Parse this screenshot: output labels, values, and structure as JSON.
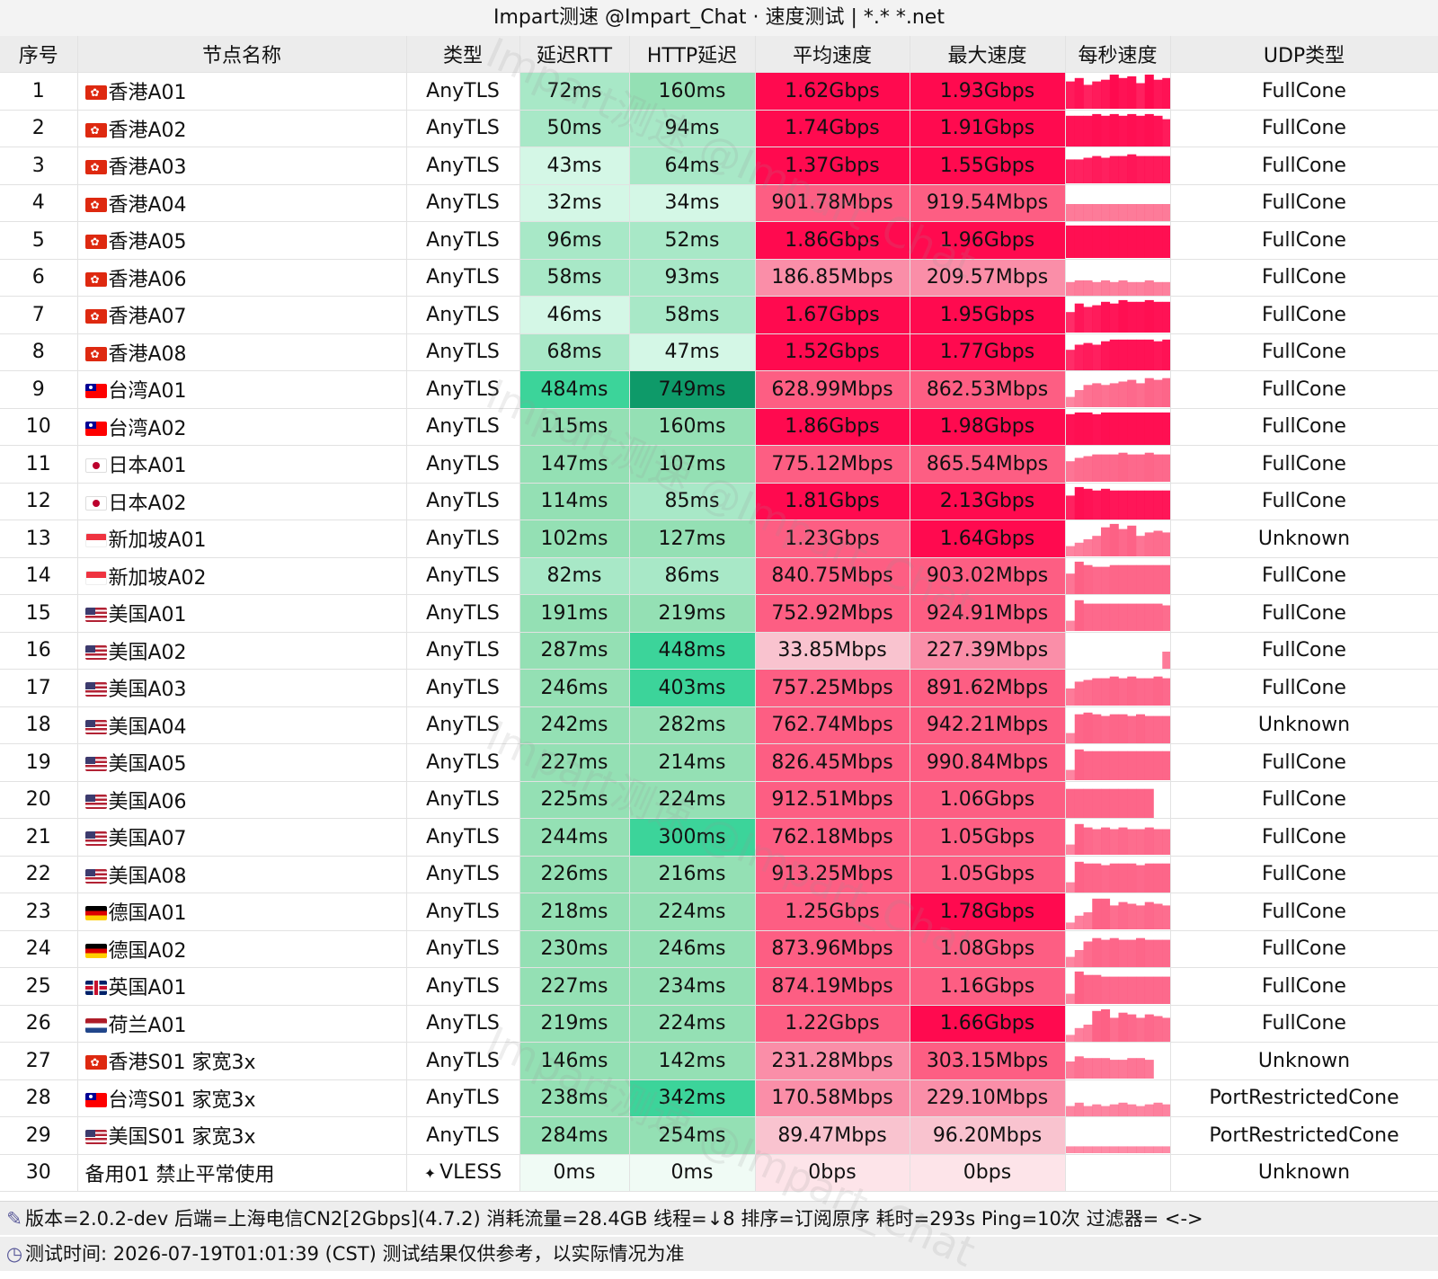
{
  "title": "Impart测速 @Impart_Chat · 速度测试 | *.* *.net",
  "columns": {
    "idx": "序号",
    "name": "节点名称",
    "type": "类型",
    "rtt": "延迟RTT",
    "http": "HTTP延迟",
    "avg": "平均速度",
    "max": "最大速度",
    "spark": "每秒速度",
    "udp": "UDP类型"
  },
  "rows": [
    {
      "idx": "1",
      "flag": "hk",
      "name": "香港A01",
      "type": "AnyTLS",
      "rtt": "72ms",
      "http": "160ms",
      "avg": "1.62Gbps",
      "max": "1.93Gbps",
      "udp": "FullCone",
      "spark": [
        0.8,
        0.9,
        0.7,
        0.8,
        0.85,
        1,
        0.9,
        0.95,
        0.75,
        1,
        0.85,
        0.9
      ]
    },
    {
      "idx": "2",
      "flag": "hk",
      "name": "香港A02",
      "type": "AnyTLS",
      "rtt": "50ms",
      "http": "94ms",
      "avg": "1.74Gbps",
      "max": "1.91Gbps",
      "udp": "FullCone",
      "spark": [
        0.9,
        0.9,
        0.9,
        0.95,
        0.9,
        0.95,
        0.9,
        0.95,
        0.9,
        0.95,
        0.9,
        0.8
      ]
    },
    {
      "idx": "3",
      "flag": "hk",
      "name": "香港A03",
      "type": "AnyTLS",
      "rtt": "43ms",
      "http": "64ms",
      "avg": "1.37Gbps",
      "max": "1.55Gbps",
      "udp": "FullCone",
      "spark": [
        0.7,
        0.7,
        0.75,
        0.8,
        0.75,
        0.8,
        0.8,
        0.85,
        0.8,
        0.8,
        0.8,
        0.8
      ]
    },
    {
      "idx": "4",
      "flag": "hk",
      "name": "香港A04",
      "type": "AnyTLS",
      "rtt": "32ms",
      "http": "34ms",
      "avg": "901.78Mbps",
      "max": "919.54Mbps",
      "udp": "FullCone",
      "spark": [
        0.5,
        0.5,
        0.5,
        0.5,
        0.5,
        0.5,
        0.5,
        0.5,
        0.5,
        0.5,
        0.5,
        0.5
      ]
    },
    {
      "idx": "5",
      "flag": "hk",
      "name": "香港A05",
      "type": "AnyTLS",
      "rtt": "96ms",
      "http": "52ms",
      "avg": "1.86Gbps",
      "max": "1.96Gbps",
      "udp": "FullCone",
      "spark": [
        0.95,
        0.95,
        0.95,
        0.95,
        0.95,
        0.95,
        0.95,
        0.95,
        0.95,
        0.95,
        0.95,
        0.95
      ]
    },
    {
      "idx": "6",
      "flag": "hk",
      "name": "香港A06",
      "type": "AnyTLS",
      "rtt": "58ms",
      "http": "93ms",
      "avg": "186.85Mbps",
      "max": "209.57Mbps",
      "udp": "FullCone",
      "spark": [
        0.4,
        0.45,
        0.45,
        0.4,
        0.45,
        0.4,
        0.45,
        0.4,
        0.4,
        0.45,
        0.4,
        0.4
      ]
    },
    {
      "idx": "7",
      "flag": "hk",
      "name": "香港A07",
      "type": "AnyTLS",
      "rtt": "46ms",
      "http": "58ms",
      "avg": "1.67Gbps",
      "max": "1.95Gbps",
      "udp": "FullCone",
      "spark": [
        0.6,
        0.85,
        0.75,
        0.8,
        0.9,
        0.85,
        0.95,
        0.9,
        0.9,
        0.95,
        0.9,
        0.9
      ]
    },
    {
      "idx": "8",
      "flag": "hk",
      "name": "香港A08",
      "type": "AnyTLS",
      "rtt": "68ms",
      "http": "47ms",
      "avg": "1.52Gbps",
      "max": "1.77Gbps",
      "udp": "FullCone",
      "spark": [
        0.6,
        0.75,
        0.8,
        0.75,
        0.85,
        0.9,
        0.9,
        0.9,
        0.9,
        0.9,
        0.85,
        0.9
      ]
    },
    {
      "idx": "9",
      "flag": "tw",
      "name": "台湾A01",
      "type": "AnyTLS",
      "rtt": "484ms",
      "http": "749ms",
      "avg": "628.99Mbps",
      "max": "862.53Mbps",
      "udp": "FullCone",
      "spark": [
        0.3,
        0.5,
        0.65,
        0.7,
        0.65,
        0.7,
        0.75,
        0.8,
        0.7,
        0.85,
        0.8,
        0.85
      ]
    },
    {
      "idx": "10",
      "flag": "tw",
      "name": "台湾A02",
      "type": "AnyTLS",
      "rtt": "115ms",
      "http": "160ms",
      "avg": "1.86Gbps",
      "max": "1.98Gbps",
      "udp": "FullCone",
      "spark": [
        0.9,
        0.95,
        0.95,
        0.9,
        0.95,
        0.95,
        0.95,
        0.95,
        0.95,
        0.95,
        0.95,
        0.95
      ]
    },
    {
      "idx": "11",
      "flag": "jp",
      "name": "日本A01",
      "type": "AnyTLS",
      "rtt": "147ms",
      "http": "107ms",
      "avg": "775.12Mbps",
      "max": "865.54Mbps",
      "udp": "FullCone",
      "spark": [
        0.6,
        0.7,
        0.75,
        0.8,
        0.8,
        0.8,
        0.85,
        0.8,
        0.8,
        0.85,
        0.8,
        0.8
      ]
    },
    {
      "idx": "12",
      "flag": "jp",
      "name": "日本A02",
      "type": "AnyTLS",
      "rtt": "114ms",
      "http": "85ms",
      "avg": "1.81Gbps",
      "max": "2.13Gbps",
      "udp": "FullCone",
      "spark": [
        0.7,
        0.95,
        0.9,
        0.85,
        0.9,
        0.85,
        0.85,
        0.85,
        0.85,
        0.85,
        0.85,
        0.85
      ]
    },
    {
      "idx": "13",
      "flag": "sg",
      "name": "新加坡A01",
      "type": "AnyTLS",
      "rtt": "102ms",
      "http": "127ms",
      "avg": "1.23Gbps",
      "max": "1.64Gbps",
      "udp": "Unknown",
      "spark": [
        0.3,
        0.4,
        0.5,
        0.6,
        0.85,
        0.95,
        0.8,
        0.9,
        0.6,
        0.7,
        0.75,
        0.7
      ]
    },
    {
      "idx": "14",
      "flag": "sg",
      "name": "新加坡A02",
      "type": "AnyTLS",
      "rtt": "82ms",
      "http": "86ms",
      "avg": "840.75Mbps",
      "max": "903.02Mbps",
      "udp": "FullCone",
      "spark": [
        0.6,
        0.95,
        0.85,
        0.8,
        0.8,
        0.85,
        0.85,
        0.85,
        0.85,
        0.85,
        0.85,
        0.85
      ]
    },
    {
      "idx": "15",
      "flag": "us",
      "name": "美国A01",
      "type": "AnyTLS",
      "rtt": "191ms",
      "http": "219ms",
      "avg": "752.92Mbps",
      "max": "924.91Mbps",
      "udp": "FullCone",
      "spark": [
        0.3,
        0.9,
        0.8,
        0.8,
        0.8,
        0.8,
        0.8,
        0.8,
        0.8,
        0.8,
        0.8,
        0.75
      ]
    },
    {
      "idx": "16",
      "flag": "us",
      "name": "美国A02",
      "type": "AnyTLS",
      "rtt": "287ms",
      "http": "448ms",
      "avg": "33.85Mbps",
      "max": "227.39Mbps",
      "udp": "FullCone",
      "spark": [
        0,
        0,
        0,
        0,
        0,
        0,
        0,
        0,
        0,
        0,
        0,
        0.5
      ]
    },
    {
      "idx": "17",
      "flag": "us",
      "name": "美国A03",
      "type": "AnyTLS",
      "rtt": "246ms",
      "http": "403ms",
      "avg": "757.25Mbps",
      "max": "891.62Mbps",
      "udp": "FullCone",
      "spark": [
        0.5,
        0.7,
        0.75,
        0.8,
        0.8,
        0.85,
        0.8,
        0.85,
        0.8,
        0.8,
        0.85,
        0.8
      ]
    },
    {
      "idx": "18",
      "flag": "us",
      "name": "美国A04",
      "type": "AnyTLS",
      "rtt": "242ms",
      "http": "282ms",
      "avg": "762.74Mbps",
      "max": "942.21Mbps",
      "udp": "Unknown",
      "spark": [
        0.3,
        0.85,
        0.9,
        0.85,
        0.8,
        0.85,
        0.85,
        0.8,
        0.85,
        0.8,
        0.8,
        0.8
      ]
    },
    {
      "idx": "19",
      "flag": "us",
      "name": "美国A05",
      "type": "AnyTLS",
      "rtt": "227ms",
      "http": "214ms",
      "avg": "826.45Mbps",
      "max": "990.84Mbps",
      "udp": "FullCone",
      "spark": [
        0.3,
        0.9,
        0.85,
        0.85,
        0.85,
        0.85,
        0.85,
        0.85,
        0.85,
        0.85,
        0.85,
        0.85
      ]
    },
    {
      "idx": "20",
      "flag": "us",
      "name": "美国A06",
      "type": "AnyTLS",
      "rtt": "225ms",
      "http": "224ms",
      "avg": "912.51Mbps",
      "max": "1.06Gbps",
      "udp": "FullCone",
      "spark": [
        0.85,
        0.85,
        0.85,
        0.85,
        0.85,
        0.85,
        0.85,
        0.85,
        0.85,
        0.85,
        0,
        0
      ]
    },
    {
      "idx": "21",
      "flag": "us",
      "name": "美国A07",
      "type": "AnyTLS",
      "rtt": "244ms",
      "http": "300ms",
      "avg": "762.18Mbps",
      "max": "1.05Gbps",
      "udp": "FullCone",
      "spark": [
        0.3,
        0.9,
        0.8,
        0.75,
        0.8,
        0.75,
        0.8,
        0.75,
        0.75,
        0.8,
        0.75,
        0.75
      ]
    },
    {
      "idx": "22",
      "flag": "us",
      "name": "美国A08",
      "type": "AnyTLS",
      "rtt": "226ms",
      "http": "216ms",
      "avg": "913.25Mbps",
      "max": "1.05Gbps",
      "udp": "FullCone",
      "spark": [
        0.3,
        0.9,
        0.85,
        0.85,
        0.8,
        0.85,
        0.85,
        0.85,
        0.8,
        0.85,
        0.85,
        0.85
      ]
    },
    {
      "idx": "23",
      "flag": "de",
      "name": "德国A01",
      "type": "AnyTLS",
      "rtt": "218ms",
      "http": "224ms",
      "avg": "1.25Gbps",
      "max": "1.78Gbps",
      "udp": "FullCone",
      "spark": [
        0.2,
        0.4,
        0.5,
        0.9,
        0.9,
        0.7,
        0.8,
        0.75,
        0.7,
        0.8,
        0.75,
        0.7
      ]
    },
    {
      "idx": "24",
      "flag": "de",
      "name": "德国A02",
      "type": "AnyTLS",
      "rtt": "230ms",
      "http": "246ms",
      "avg": "873.96Mbps",
      "max": "1.08Gbps",
      "udp": "FullCone",
      "spark": [
        0.3,
        0.5,
        0.75,
        0.85,
        0.8,
        0.85,
        0.8,
        0.8,
        0.85,
        0.8,
        0.8,
        0.8
      ]
    },
    {
      "idx": "25",
      "flag": "gb",
      "name": "英国A01",
      "type": "AnyTLS",
      "rtt": "227ms",
      "http": "234ms",
      "avg": "874.19Mbps",
      "max": "1.16Gbps",
      "udp": "FullCone",
      "spark": [
        0.3,
        0.95,
        0.85,
        0.85,
        0.8,
        0.8,
        0.8,
        0.8,
        0.8,
        0.8,
        0.8,
        0.8
      ]
    },
    {
      "idx": "26",
      "flag": "nl",
      "name": "荷兰A01",
      "type": "AnyTLS",
      "rtt": "219ms",
      "http": "224ms",
      "avg": "1.22Gbps",
      "max": "1.66Gbps",
      "udp": "FullCone",
      "spark": [
        0.2,
        0.4,
        0.5,
        0.9,
        0.95,
        0.7,
        0.85,
        0.8,
        0.7,
        0.8,
        0.75,
        0.7
      ]
    },
    {
      "idx": "27",
      "flag": "hk",
      "name": "香港S01 家宽3x",
      "type": "AnyTLS",
      "rtt": "146ms",
      "http": "142ms",
      "avg": "231.28Mbps",
      "max": "303.15Mbps",
      "udp": "Unknown",
      "spark": [
        0.5,
        0.65,
        0.6,
        0.6,
        0.6,
        0.55,
        0.55,
        0.6,
        0.6,
        0.55,
        0,
        0
      ]
    },
    {
      "idx": "28",
      "flag": "tw",
      "name": "台湾S01 家宽3x",
      "type": "AnyTLS",
      "rtt": "238ms",
      "http": "342ms",
      "avg": "170.58Mbps",
      "max": "229.10Mbps",
      "udp": "PortRestrictedCone",
      "spark": [
        0.3,
        0.4,
        0.3,
        0.35,
        0.3,
        0.35,
        0.4,
        0.35,
        0.3,
        0.35,
        0.4,
        0.35
      ]
    },
    {
      "idx": "29",
      "flag": "us",
      "name": "美国S01 家宽3x",
      "type": "AnyTLS",
      "rtt": "284ms",
      "http": "254ms",
      "avg": "89.47Mbps",
      "max": "96.20Mbps",
      "udp": "PortRestrictedCone",
      "spark": [
        0.2,
        0.2,
        0.2,
        0.2,
        0.2,
        0.2,
        0.2,
        0.2,
        0.2,
        0.2,
        0.2,
        0.2
      ]
    },
    {
      "idx": "30",
      "flag": "",
      "name": "备用01 禁止平常使用",
      "type": "VLESS",
      "type_icon": "✦",
      "rtt": "0ms",
      "http": "0ms",
      "avg": "0bps",
      "max": "0bps",
      "udp": "Unknown",
      "spark": []
    }
  ],
  "footer": {
    "line1": "版本=2.0.2-dev  后端=上海电信CN2[2Gbps](4.7.2) 消耗流量=28.4GB  线程=↓8  排序=订阅原序  耗时=293s  Ping=10次  过滤器= <->",
    "line2": "测试时间: 2026-07-19T01:01:39 (CST)  测试结果仅供参考，以实际情况为准",
    "icon1": "wrench-icon",
    "icon2": "clock-icon"
  },
  "watermark": "Impart测速 @Impart_Chat"
}
